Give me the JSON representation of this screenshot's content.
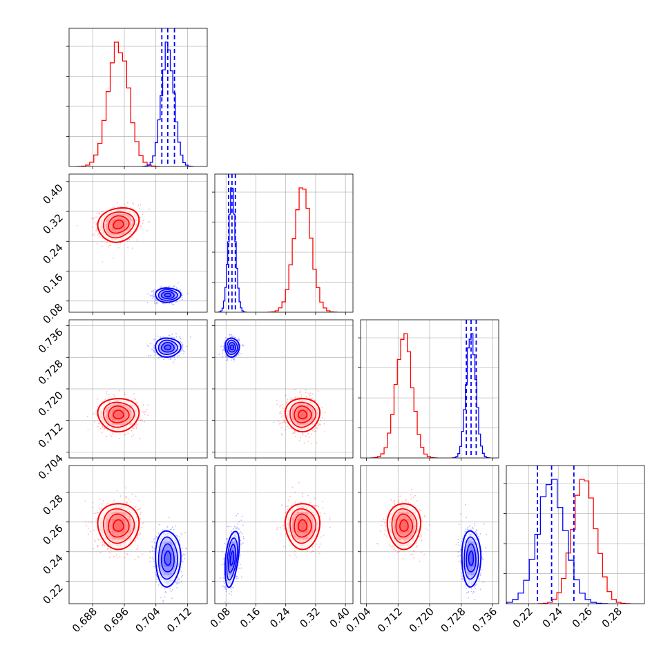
{
  "colors": {
    "red": "#ff0000",
    "blue": "#0000ff",
    "grid": "#b0b0b0"
  },
  "chart_data": {
    "type": "corner",
    "grid": true,
    "params": [
      {
        "index": 0,
        "range": [
          0.682,
          0.717
        ],
        "ticks": [
          "0.688",
          "0.696",
          "0.704",
          "0.712"
        ]
      },
      {
        "index": 1,
        "range": [
          0.05,
          0.42
        ],
        "ticks": [
          "0.08",
          "0.16",
          "0.24",
          "0.32",
          "0.40"
        ]
      },
      {
        "index": 2,
        "range": [
          0.7025,
          0.7375
        ],
        "ticks": [
          "0.704",
          "0.712",
          "0.720",
          "0.728",
          "0.736"
        ]
      },
      {
        "index": 3,
        "range": [
          0.205,
          0.298
        ],
        "ticks": [
          "0.22",
          "0.24",
          "0.26",
          "0.28"
        ]
      }
    ],
    "series": [
      {
        "color": "#ff0000",
        "mean": [
          0.6945,
          0.285,
          0.7135,
          0.2575
        ],
        "sd": [
          0.0026,
          0.023,
          0.0021,
          0.0077
        ],
        "corr": [
          [
            1,
            0.15,
            0,
            0
          ],
          [
            0.15,
            1,
            0,
            0
          ],
          [
            0,
            0,
            1,
            0
          ],
          [
            0,
            0,
            0,
            1
          ]
        ],
        "quantiles": null
      },
      {
        "color": "#0000ff",
        "mean": [
          0.707,
          0.096,
          0.7305,
          0.2355
        ],
        "sd": [
          0.0016,
          0.0095,
          0.0012,
          0.0094
        ],
        "corr": [
          [
            1,
            0,
            0,
            0
          ],
          [
            0,
            1,
            0,
            0.45
          ],
          [
            0,
            0,
            1,
            0
          ],
          [
            0,
            0.45,
            0,
            1
          ]
        ],
        "quantiles": [
          [
            0.7055,
            0.707,
            0.7087
          ],
          [
            0.087,
            0.096,
            0.105
          ],
          [
            0.7293,
            0.7305,
            0.7318
          ],
          [
            0.226,
            0.2355,
            0.2505
          ]
        ]
      }
    ]
  }
}
